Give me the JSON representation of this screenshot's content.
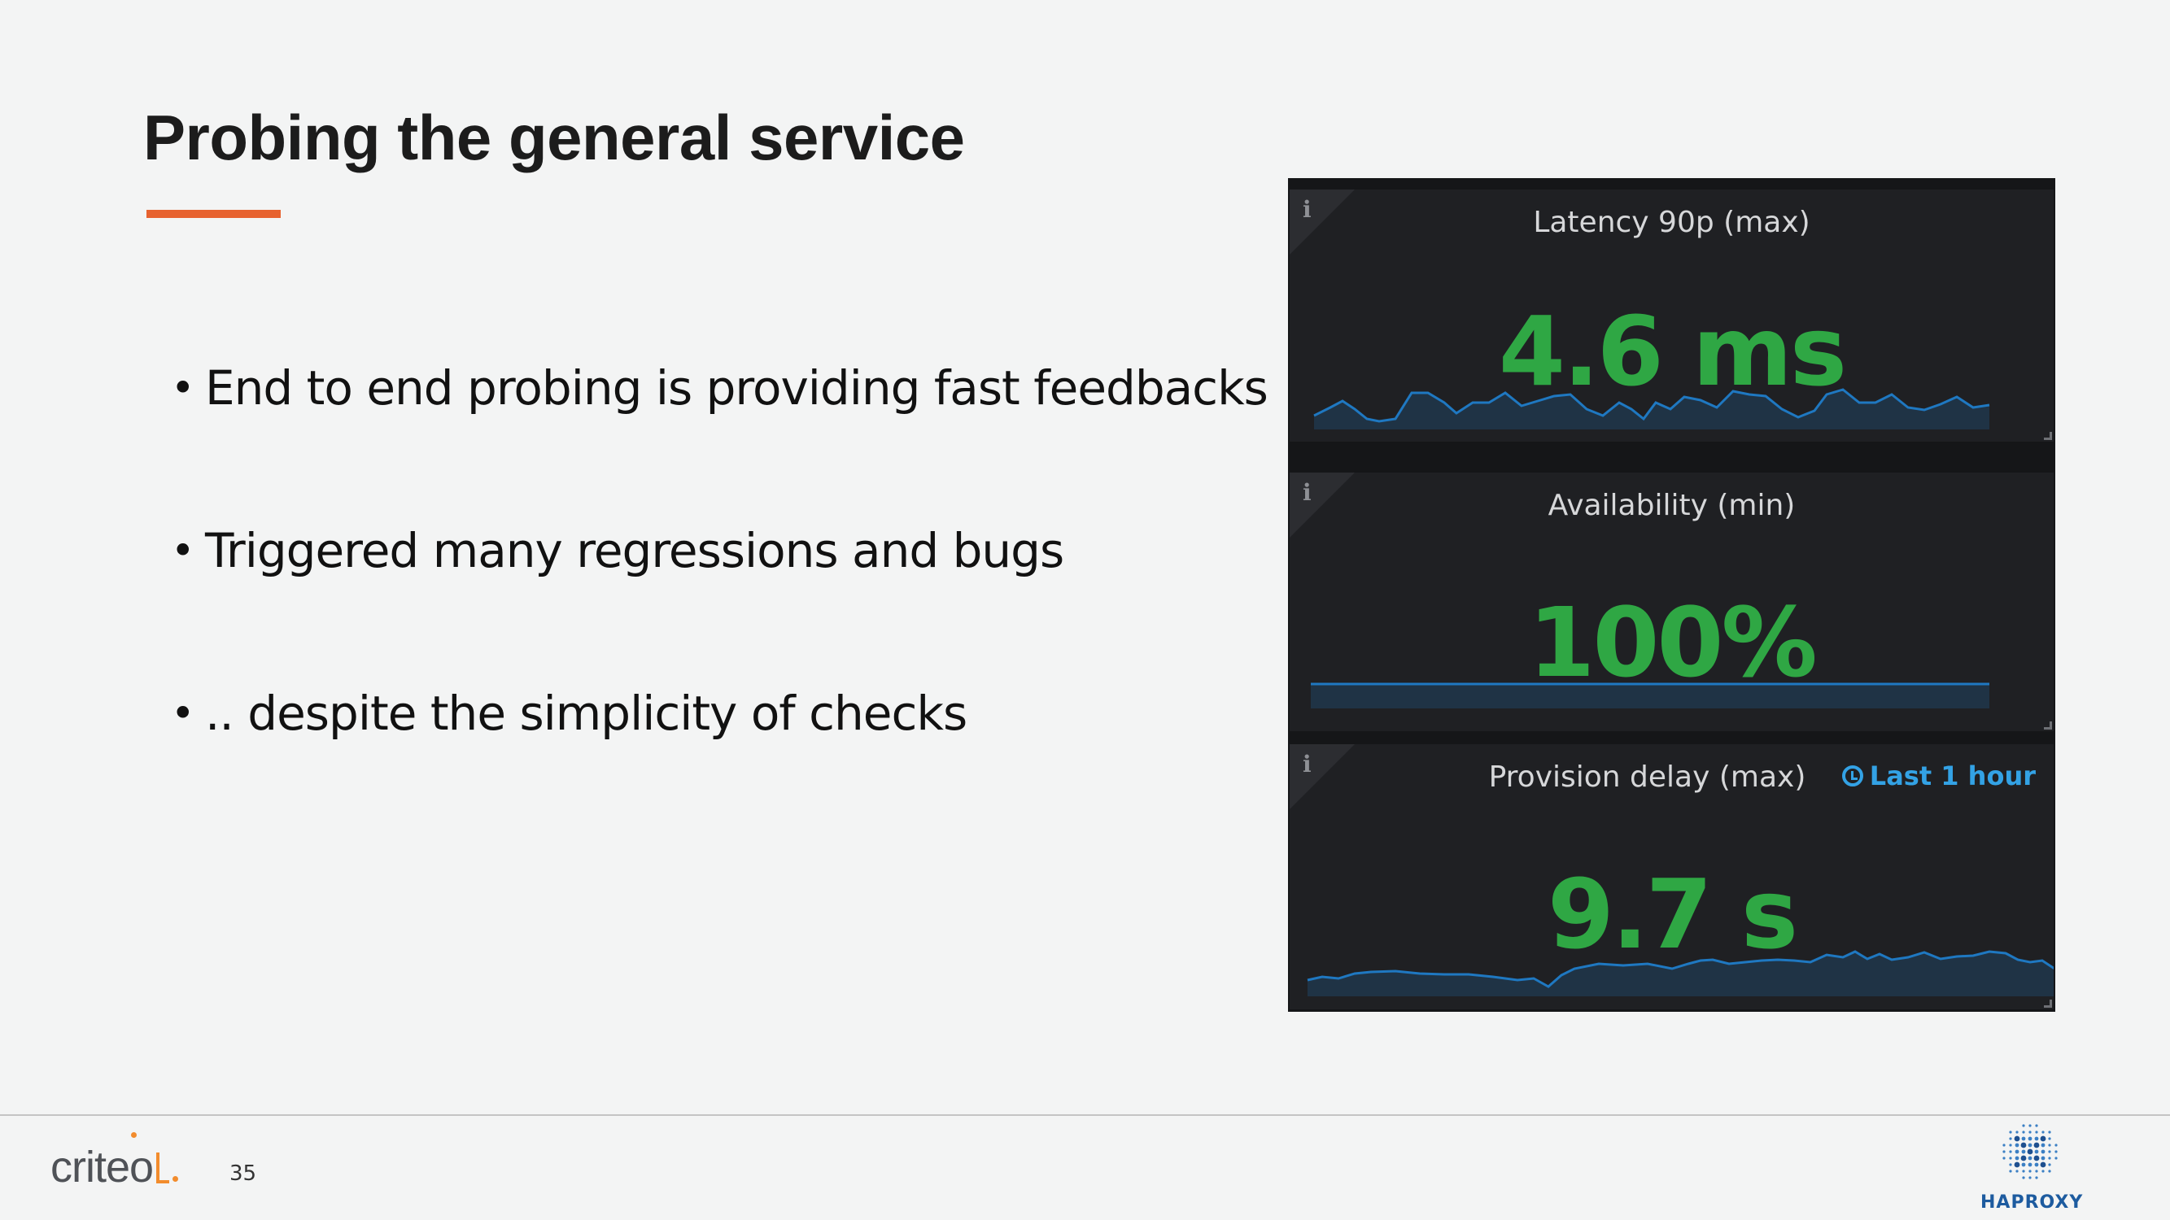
{
  "slide": {
    "title": "Probing the general service",
    "bullets": [
      "End to end probing is providing fast feedbacks",
      "Triggered many regressions and bugs",
      ".. despite the simplicity of checks"
    ],
    "page_number": "35"
  },
  "dashboard": {
    "panels": [
      {
        "title": "Latency 90p (max)",
        "value": "4.6 ms"
      },
      {
        "title": "Availability (min)",
        "value": "100%"
      },
      {
        "title": "Provision delay (max)",
        "value": "9.7 s",
        "time_range": "Last 1 hour"
      }
    ],
    "info_icon": "i",
    "colors": {
      "value": "#2fa744",
      "sparkline": "#1f78c1",
      "panel_bg": "#1f2023",
      "accent": "#e7622f"
    }
  },
  "footer": {
    "criteo_logo": "criteo",
    "haproxy_logo": "HAPROXY"
  }
}
